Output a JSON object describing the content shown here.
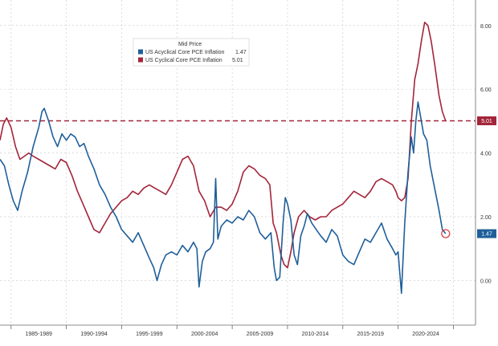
{
  "chart_data": {
    "type": "line",
    "legend": {
      "title": "Mid Price",
      "placement": "top-left",
      "entries": [
        {
          "name": "US Acyclical Core PCE Inflation",
          "value": "1.47",
          "color": "#1f5f9a"
        },
        {
          "name": "US Cyclical Core PCE Inflation",
          "value": "5.01",
          "color": "#a3253a"
        }
      ]
    },
    "y_axis": {
      "side": "right",
      "ylim": [
        -1.4,
        8.8
      ],
      "ticks": [
        "0.00",
        "2.00",
        "4.00",
        "6.00",
        "8.00"
      ]
    },
    "x_axis": {
      "xlim": [
        1984.0,
        2027.0
      ],
      "tick_labels": [
        "1985-1989",
        "1990-1994",
        "1995-1999",
        "2000-2004",
        "2005-2009",
        "2010-2014",
        "2015-2019",
        "2020-2024"
      ]
    },
    "grid": true,
    "reference_line": {
      "y": 5.01,
      "style": "dashed",
      "color": "#a3253a"
    },
    "last_value_badges": [
      {
        "series": "US Cyclical Core PCE Inflation",
        "label": "5.01",
        "color": "#a3253a"
      },
      {
        "series": "US Acyclical Core PCE Inflation",
        "label": "1.47",
        "color": "#1f5f9a"
      }
    ],
    "series": [
      {
        "name": "US Acyclical Core PCE Inflation",
        "color": "#1f5f9a",
        "points": [
          [
            1984.0,
            3.8
          ],
          [
            1984.4,
            3.6
          ],
          [
            1984.8,
            3.0
          ],
          [
            1985.2,
            2.5
          ],
          [
            1985.6,
            2.2
          ],
          [
            1986.0,
            2.8
          ],
          [
            1986.5,
            3.4
          ],
          [
            1987.0,
            4.2
          ],
          [
            1987.5,
            4.8
          ],
          [
            1987.8,
            5.3
          ],
          [
            1988.0,
            5.4
          ],
          [
            1988.4,
            5.0
          ],
          [
            1988.8,
            4.5
          ],
          [
            1989.2,
            4.2
          ],
          [
            1989.6,
            4.6
          ],
          [
            1990.0,
            4.4
          ],
          [
            1990.4,
            4.6
          ],
          [
            1990.8,
            4.5
          ],
          [
            1991.2,
            4.2
          ],
          [
            1991.6,
            4.3
          ],
          [
            1992.0,
            3.9
          ],
          [
            1992.5,
            3.5
          ],
          [
            1993.0,
            3.0
          ],
          [
            1993.5,
            2.7
          ],
          [
            1994.0,
            2.3
          ],
          [
            1994.5,
            2.0
          ],
          [
            1995.0,
            1.6
          ],
          [
            1995.5,
            1.4
          ],
          [
            1996.0,
            1.2
          ],
          [
            1996.5,
            1.5
          ],
          [
            1997.0,
            1.1
          ],
          [
            1997.5,
            0.7
          ],
          [
            1997.9,
            0.4
          ],
          [
            1998.2,
            0.0
          ],
          [
            1998.6,
            0.5
          ],
          [
            1999.0,
            0.8
          ],
          [
            1999.5,
            0.9
          ],
          [
            2000.0,
            0.8
          ],
          [
            2000.5,
            1.1
          ],
          [
            2001.0,
            0.9
          ],
          [
            2001.5,
            1.2
          ],
          [
            2001.8,
            1.0
          ],
          [
            2002.0,
            -0.2
          ],
          [
            2002.3,
            0.6
          ],
          [
            2002.6,
            0.9
          ],
          [
            2003.0,
            1.0
          ],
          [
            2003.3,
            1.2
          ],
          [
            2003.5,
            3.2
          ],
          [
            2003.7,
            1.3
          ],
          [
            2004.0,
            1.7
          ],
          [
            2004.5,
            1.9
          ],
          [
            2005.0,
            1.8
          ],
          [
            2005.5,
            2.0
          ],
          [
            2006.0,
            1.9
          ],
          [
            2006.5,
            2.2
          ],
          [
            2007.0,
            2.0
          ],
          [
            2007.5,
            1.5
          ],
          [
            2008.0,
            1.3
          ],
          [
            2008.5,
            1.5
          ],
          [
            2008.8,
            0.4
          ],
          [
            2009.0,
            0.0
          ],
          [
            2009.3,
            0.1
          ],
          [
            2009.6,
            1.8
          ],
          [
            2009.8,
            2.6
          ],
          [
            2010.0,
            2.4
          ],
          [
            2010.3,
            1.9
          ],
          [
            2010.6,
            0.8
          ],
          [
            2010.9,
            0.5
          ],
          [
            2011.2,
            1.4
          ],
          [
            2011.5,
            1.7
          ],
          [
            2011.8,
            2.1
          ],
          [
            2012.2,
            1.8
          ],
          [
            2012.6,
            1.6
          ],
          [
            2013.0,
            1.4
          ],
          [
            2013.5,
            1.2
          ],
          [
            2014.0,
            1.6
          ],
          [
            2014.5,
            1.4
          ],
          [
            2015.0,
            0.8
          ],
          [
            2015.5,
            0.6
          ],
          [
            2016.0,
            0.5
          ],
          [
            2016.5,
            0.9
          ],
          [
            2017.0,
            1.3
          ],
          [
            2017.5,
            1.2
          ],
          [
            2018.0,
            1.5
          ],
          [
            2018.5,
            1.8
          ],
          [
            2019.0,
            1.3
          ],
          [
            2019.5,
            1.0
          ],
          [
            2019.8,
            0.8
          ],
          [
            2020.0,
            0.9
          ],
          [
            2020.3,
            -0.4
          ],
          [
            2020.6,
            1.8
          ],
          [
            2020.9,
            3.4
          ],
          [
            2021.2,
            4.5
          ],
          [
            2021.4,
            4.0
          ],
          [
            2021.6,
            5.0
          ],
          [
            2021.8,
            5.6
          ],
          [
            2022.0,
            5.2
          ],
          [
            2022.3,
            4.6
          ],
          [
            2022.6,
            4.4
          ],
          [
            2022.9,
            3.6
          ],
          [
            2023.3,
            2.9
          ],
          [
            2023.7,
            2.2
          ],
          [
            2024.0,
            1.6
          ],
          [
            2024.3,
            1.47
          ]
        ]
      },
      {
        "name": "US Cyclical Core PCE Inflation",
        "color": "#a3253a",
        "points": [
          [
            1984.0,
            4.4
          ],
          [
            1984.3,
            4.9
          ],
          [
            1984.6,
            5.1
          ],
          [
            1985.0,
            4.8
          ],
          [
            1985.4,
            4.2
          ],
          [
            1985.8,
            3.8
          ],
          [
            1986.2,
            3.9
          ],
          [
            1986.6,
            4.0
          ],
          [
            1987.0,
            3.9
          ],
          [
            1987.5,
            3.8
          ],
          [
            1988.0,
            3.7
          ],
          [
            1988.5,
            3.6
          ],
          [
            1989.0,
            3.5
          ],
          [
            1989.5,
            3.8
          ],
          [
            1990.0,
            3.7
          ],
          [
            1990.5,
            3.3
          ],
          [
            1991.0,
            2.8
          ],
          [
            1991.5,
            2.4
          ],
          [
            1992.0,
            2.0
          ],
          [
            1992.5,
            1.6
          ],
          [
            1993.0,
            1.5
          ],
          [
            1993.5,
            1.8
          ],
          [
            1994.0,
            2.1
          ],
          [
            1994.5,
            2.3
          ],
          [
            1995.0,
            2.5
          ],
          [
            1995.5,
            2.6
          ],
          [
            1996.0,
            2.8
          ],
          [
            1996.5,
            2.7
          ],
          [
            1997.0,
            2.9
          ],
          [
            1997.5,
            3.0
          ],
          [
            1998.0,
            2.9
          ],
          [
            1998.5,
            2.8
          ],
          [
            1999.0,
            2.7
          ],
          [
            1999.5,
            3.0
          ],
          [
            2000.0,
            3.4
          ],
          [
            2000.5,
            3.8
          ],
          [
            2001.0,
            3.9
          ],
          [
            2001.5,
            3.6
          ],
          [
            2002.0,
            2.8
          ],
          [
            2002.5,
            2.5
          ],
          [
            2003.0,
            2.0
          ],
          [
            2003.5,
            2.3
          ],
          [
            2004.0,
            2.3
          ],
          [
            2004.5,
            2.2
          ],
          [
            2005.0,
            2.4
          ],
          [
            2005.5,
            2.8
          ],
          [
            2006.0,
            3.4
          ],
          [
            2006.5,
            3.6
          ],
          [
            2007.0,
            3.5
          ],
          [
            2007.5,
            3.3
          ],
          [
            2008.0,
            3.2
          ],
          [
            2008.4,
            3.0
          ],
          [
            2008.7,
            1.8
          ],
          [
            2009.0,
            1.5
          ],
          [
            2009.4,
            0.8
          ],
          [
            2009.7,
            0.5
          ],
          [
            2010.0,
            0.4
          ],
          [
            2010.3,
            0.9
          ],
          [
            2010.6,
            1.5
          ],
          [
            2011.0,
            2.0
          ],
          [
            2011.5,
            2.2
          ],
          [
            2012.0,
            2.0
          ],
          [
            2012.5,
            1.9
          ],
          [
            2013.0,
            2.0
          ],
          [
            2013.5,
            2.0
          ],
          [
            2014.0,
            2.2
          ],
          [
            2014.5,
            2.3
          ],
          [
            2015.0,
            2.4
          ],
          [
            2015.5,
            2.6
          ],
          [
            2016.0,
            2.8
          ],
          [
            2016.5,
            2.7
          ],
          [
            2017.0,
            2.6
          ],
          [
            2017.5,
            2.8
          ],
          [
            2018.0,
            3.1
          ],
          [
            2018.5,
            3.2
          ],
          [
            2019.0,
            3.1
          ],
          [
            2019.5,
            3.0
          ],
          [
            2019.8,
            2.8
          ],
          [
            2020.0,
            2.6
          ],
          [
            2020.3,
            2.5
          ],
          [
            2020.6,
            2.6
          ],
          [
            2020.9,
            3.2
          ],
          [
            2021.2,
            5.0
          ],
          [
            2021.5,
            6.3
          ],
          [
            2021.8,
            6.8
          ],
          [
            2022.1,
            7.5
          ],
          [
            2022.4,
            8.1
          ],
          [
            2022.7,
            8.0
          ],
          [
            2023.0,
            7.5
          ],
          [
            2023.3,
            6.8
          ],
          [
            2023.7,
            5.8
          ],
          [
            2024.0,
            5.3
          ],
          [
            2024.3,
            5.01
          ]
        ]
      }
    ]
  }
}
